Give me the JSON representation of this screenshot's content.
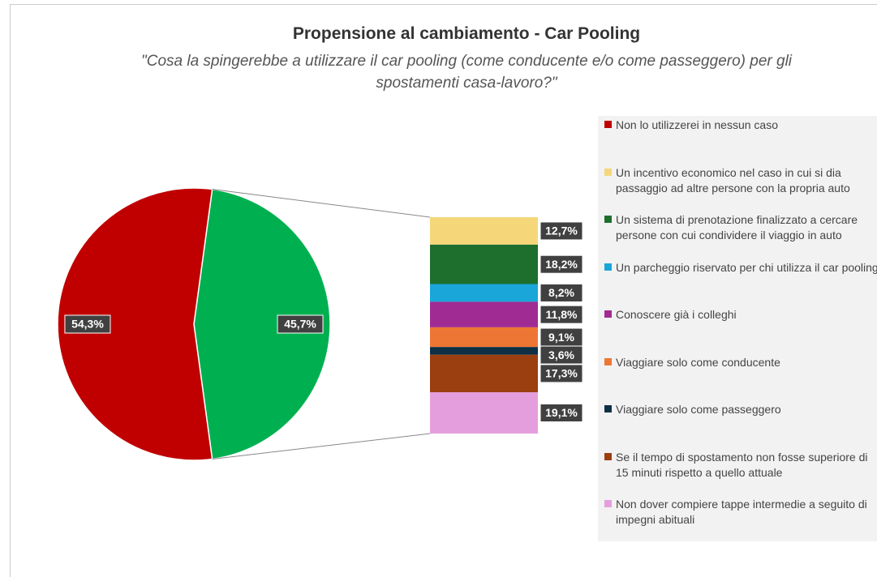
{
  "chart_data": {
    "type": "bar-of-pie",
    "title": "Propensione al cambiamento - Car Pooling",
    "subtitle": "\"Cosa la spingerebbe a utilizzare il car pooling (come conducente e/o come passeggero) per gli spostamenti casa-lavoro?\"",
    "pie": {
      "categories": [
        "Non lo utilizzerei in nessun caso",
        null
      ],
      "values": [
        54.3,
        45.7
      ],
      "value_labels": [
        "54,3%",
        "45,7%"
      ],
      "colors": [
        "#c00000",
        "#00b050"
      ]
    },
    "bar": {
      "categories": [
        "Un incentivo economico nel caso in cui si dia passaggio ad altre persone con la propria auto",
        "Un sistema di prenotazione finalizzato a cercare persone con cui condividere il viaggio in auto",
        "Un parcheggio riservato per chi utilizza il car pooling",
        "Conoscere già i colleghi",
        "Viaggiare solo come conducente",
        "Viaggiare solo come passeggero",
        "Se il tempo di spostamento non fosse superiore di 15 minuti rispetto a quello attuale",
        "Non dover compiere tappe intermedie a seguito di impegni abituali"
      ],
      "values": [
        12.7,
        18.2,
        8.2,
        11.8,
        9.1,
        3.6,
        17.3,
        19.1
      ],
      "value_labels": [
        "12,7%",
        "18,2%",
        "8,2%",
        "11,8%",
        "9,1%",
        "3,6%",
        "17,3%",
        "19,1%"
      ],
      "colors": [
        "#f5d77a",
        "#1e6e2e",
        "#1aa6d9",
        "#a02b93",
        "#ee7634",
        "#0e2f44",
        "#9b3e10",
        "#e59edd"
      ]
    }
  }
}
